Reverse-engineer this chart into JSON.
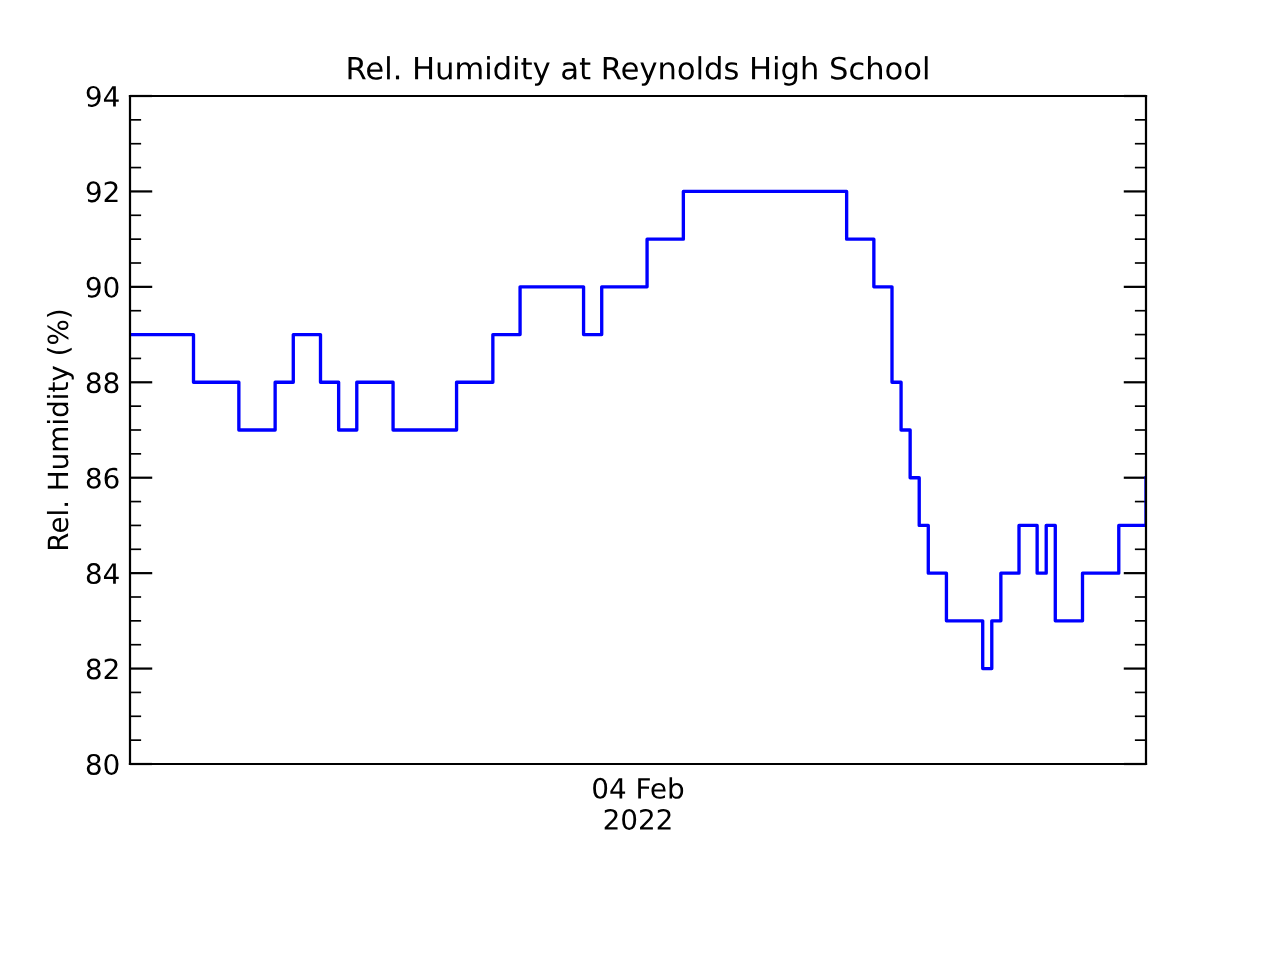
{
  "chart_data": {
    "type": "step",
    "title": "Rel. Humidity at Reynolds High School",
    "ylabel": "Rel. Humidity (%)",
    "annotations": [
      "04 Feb\n2022"
    ],
    "categories": [
      null,
      null,
      null,
      null,
      null,
      null,
      null,
      null,
      null,
      null,
      null,
      null,
      null,
      null,
      null,
      null,
      null,
      null,
      null,
      null,
      null,
      null,
      null,
      null,
      null,
      null,
      null,
      null,
      null,
      null,
      null,
      null,
      null,
      null,
      null,
      null,
      null,
      null,
      null,
      null,
      null,
      null,
      null,
      null,
      null,
      null,
      null,
      null,
      null,
      null,
      null,
      null,
      null,
      null,
      null,
      null,
      null,
      null,
      null,
      null,
      null,
      null,
      null,
      null,
      null,
      null,
      null,
      null,
      null,
      null,
      null,
      null,
      null,
      null,
      null,
      null,
      null,
      null,
      null,
      null,
      null,
      null,
      null,
      null,
      null,
      null,
      null,
      null,
      null,
      null,
      null,
      null,
      null,
      null,
      null,
      null,
      null,
      null,
      null,
      null,
      null,
      null,
      null,
      null,
      null,
      null,
      null,
      null,
      null,
      null,
      null,
      null,
      null
    ],
    "ylim": [
      80,
      94
    ],
    "yticks": [
      80,
      82,
      84,
      86,
      88,
      90,
      92,
      94
    ],
    "grid": false,
    "legend": false,
    "series": [
      {
        "color": "#0000ff",
        "values": [
          89,
          89,
          89,
          89,
          89,
          89,
          89,
          88,
          88,
          88,
          88,
          88,
          87,
          87,
          87,
          87,
          88,
          88,
          89,
          89,
          89,
          88,
          88,
          87,
          87,
          88,
          88,
          88,
          88,
          87,
          87,
          87,
          87,
          87,
          87,
          87,
          88,
          88,
          88,
          88,
          89,
          89,
          89,
          90,
          90,
          90,
          90,
          90,
          90,
          90,
          89,
          89,
          90,
          90,
          90,
          90,
          90,
          91,
          91,
          91,
          91,
          92,
          92,
          92,
          92,
          92,
          92,
          92,
          92,
          92,
          92,
          92,
          92,
          92,
          92,
          92,
          92,
          92,
          92,
          91,
          91,
          91,
          90,
          90,
          88,
          87,
          86,
          85,
          84,
          84,
          83,
          83,
          83,
          83,
          82,
          83,
          84,
          84,
          85,
          85,
          84,
          85,
          83,
          83,
          83,
          84,
          84,
          84,
          84,
          85,
          85,
          85,
          86
        ]
      }
    ]
  }
}
